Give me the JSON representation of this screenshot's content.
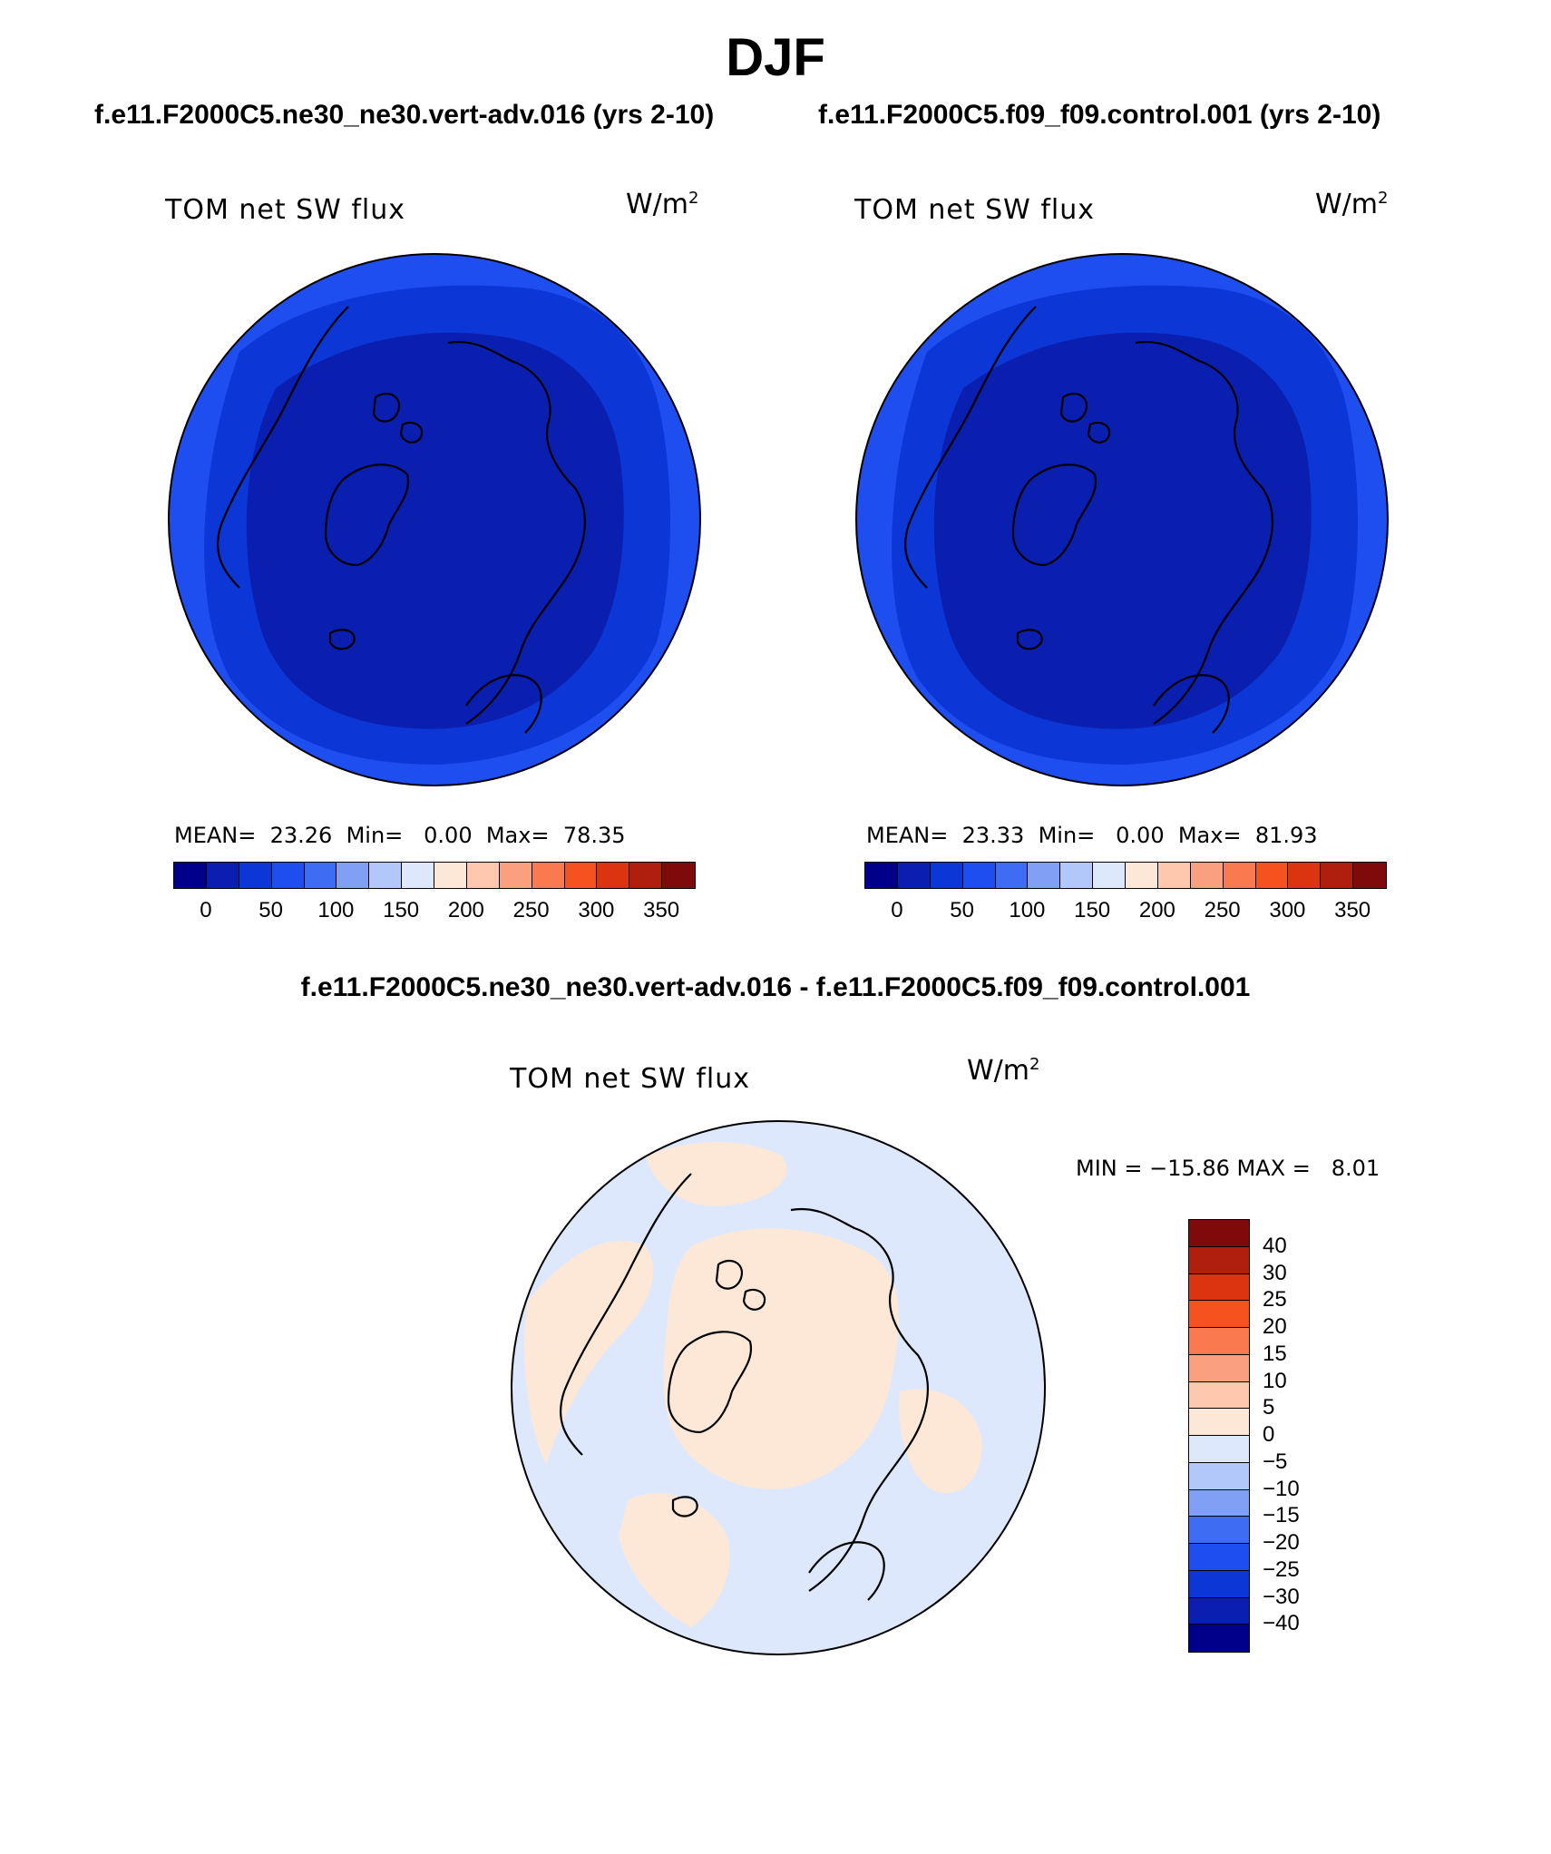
{
  "title": "DJF",
  "panels": {
    "left": {
      "case_title": "f.e11.F2000C5.ne30_ne30.vert-adv.016 (yrs 2-10)",
      "variable": "TOM net SW flux",
      "units_base": "W/m",
      "units_exp": "2",
      "stats_text": "MEAN=  23.26  Min=   0.00  Max=  78.35",
      "mean": 23.26,
      "min": 0.0,
      "max": 78.35,
      "colorbar_ticks": [
        "0",
        "50",
        "100",
        "150",
        "200",
        "250",
        "300",
        "350"
      ]
    },
    "right": {
      "case_title": "f.e11.F2000C5.f09_f09.control.001 (yrs 2-10)",
      "variable": "TOM net SW flux",
      "units_base": "W/m",
      "units_exp": "2",
      "stats_text": "MEAN=  23.33  Min=   0.00  Max=  81.93",
      "mean": 23.33,
      "min": 0.0,
      "max": 81.93,
      "colorbar_ticks": [
        "0",
        "50",
        "100",
        "150",
        "200",
        "250",
        "300",
        "350"
      ]
    },
    "diff": {
      "case_title": "f.e11.F2000C5.ne30_ne30.vert-adv.016 - f.e11.F2000C5.f09_f09.control.001",
      "variable": "TOM net SW flux",
      "units_base": "W/m",
      "units_exp": "2",
      "stats_text": "MIN = −15.86 MAX =   8.01",
      "min": -15.86,
      "max": 8.01,
      "colorbar_ticks": [
        "40",
        "30",
        "25",
        "20",
        "15",
        "10",
        "5",
        "0",
        "−5",
        "−10",
        "−15",
        "−20",
        "−25",
        "−30",
        "−40"
      ]
    }
  },
  "colors": {
    "abs_scale": [
      "#00008b",
      "#0a1fb0",
      "#0d36d6",
      "#1f4ef0",
      "#3e6cf2",
      "#7fa0f5",
      "#b3c8fa",
      "#dde8fd",
      "#fde8d8",
      "#fdc8ae",
      "#fba07e",
      "#f97a4f",
      "#f5521f",
      "#dc3410",
      "#b01f0e",
      "#7e0a0a"
    ],
    "diff_scale": [
      "#7e0a0a",
      "#b01f0e",
      "#dc3410",
      "#f5521f",
      "#f97a4f",
      "#fba07e",
      "#fdc8ae",
      "#fde8d8",
      "#dde8fd",
      "#b3c8fa",
      "#7fa0f5",
      "#3e6cf2",
      "#1f4ef0",
      "#0d36d6",
      "#0a1fb0",
      "#00008b"
    ],
    "map_outer": "#1f4ef0",
    "map_mid": "#0d36d6",
    "map_inner": "#0a1fb0",
    "diff_pos": "#fde8d8",
    "diff_neg": "#dde8fd"
  }
}
